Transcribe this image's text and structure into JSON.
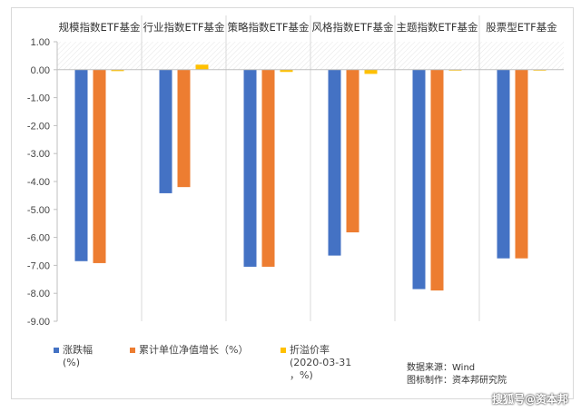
{
  "chart_data": {
    "type": "bar",
    "categories": [
      "规模指数ETF基金",
      "行业指数ETF基金",
      "策略指数ETF基金",
      "风格指数ETF基金",
      "主题指数ETF基金",
      "股票型ETF基金"
    ],
    "series": [
      {
        "name": "涨跌幅（%）",
        "values": [
          -6.85,
          -4.42,
          -7.05,
          -6.65,
          -7.85,
          -6.75
        ],
        "color": "#4472C4"
      },
      {
        "name": "累计单位净值增长（%）",
        "values": [
          -6.92,
          -4.2,
          -7.05,
          -5.82,
          -7.9,
          -6.75
        ],
        "color": "#ED7D31"
      },
      {
        "name": "折溢价率（2020-03-31，%）",
        "values": [
          -0.05,
          0.18,
          -0.08,
          -0.15,
          -0.02,
          0.0
        ],
        "color": "#FFC000"
      }
    ],
    "ylim": [
      -9.0,
      1.0
    ],
    "yticks": [
      "1.00",
      "0.00",
      "-1.00",
      "-2.00",
      "-3.00",
      "-4.00",
      "-5.00",
      "-6.00",
      "-7.00",
      "-8.00",
      "-9.00"
    ],
    "legend_position": "bottom",
    "grid": "vertical category separators"
  },
  "legend": {
    "item1": {
      "line1": "涨跌幅",
      "line2": "(%)"
    },
    "item2": {
      "line1": "累计单位净值增长（%）"
    },
    "item3": {
      "line1": "折溢价率",
      "line2": "(2020-03-31",
      "line3": "，%)"
    }
  },
  "source": {
    "line1": "数据来源：Wind",
    "line2": "图标制作：资本邦研究院"
  },
  "watermark": "搜狐号@资本邦"
}
